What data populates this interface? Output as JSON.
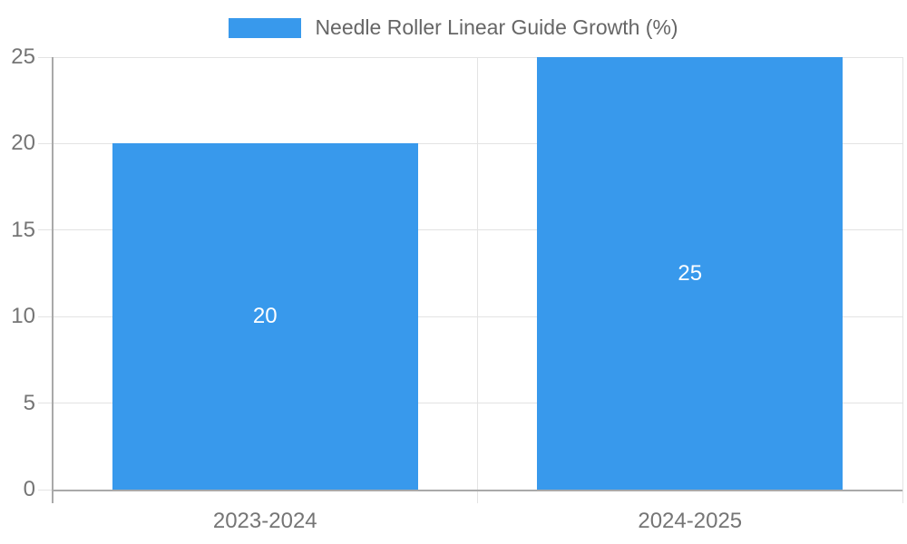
{
  "legend": {
    "label": "Needle Roller Linear Guide Growth (%)"
  },
  "colors": {
    "bar": "#3899ec",
    "grid": "#e3e3e3",
    "axis_line": "#a9a9a9",
    "tick_label": "#757575",
    "category_label": "#757575",
    "legend_text": "#666666",
    "data_label": "#ffffff",
    "background": "#ffffff"
  },
  "chart_data": {
    "type": "bar",
    "title": "",
    "xlabel": "",
    "ylabel": "",
    "categories": [
      "2023-2024",
      "2024-2025"
    ],
    "series": [
      {
        "name": "Needle Roller Linear Guide Growth (%)",
        "values": [
          20,
          25
        ],
        "color": "#3899ec"
      }
    ],
    "values": [
      20,
      25
    ],
    "data_labels": [
      20,
      25
    ],
    "ylim": [
      0,
      25
    ],
    "yticks": [
      0,
      5,
      10,
      15,
      20,
      25
    ],
    "grid": true,
    "legend_position": "top"
  }
}
